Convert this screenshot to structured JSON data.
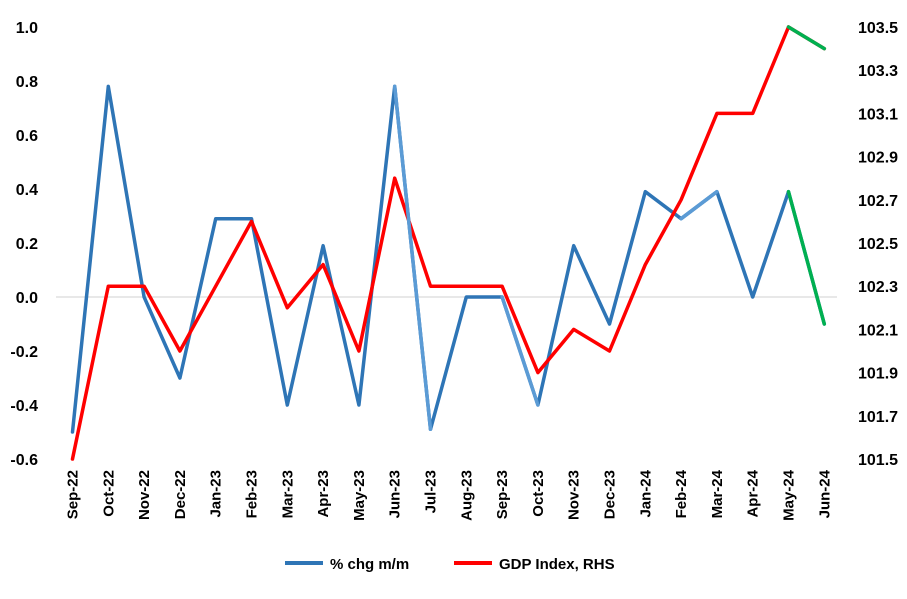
{
  "chart_data": {
    "type": "line",
    "categories": [
      "Sep-22",
      "Oct-22",
      "Nov-22",
      "Dec-22",
      "Jan-23",
      "Feb-23",
      "Mar-23",
      "Apr-23",
      "May-23",
      "Jun-23",
      "Jul-23",
      "Aug-23",
      "Sep-23",
      "Oct-23",
      "Nov-23",
      "Dec-23",
      "Jan-24",
      "Feb-24",
      "Mar-24",
      "Apr-24",
      "May-24",
      "Jun-24"
    ],
    "series": [
      {
        "name": "% chg m/m",
        "axis": "left",
        "color": "#2e75b6",
        "values": [
          -0.5,
          0.78,
          0.0,
          -0.3,
          0.29,
          0.29,
          -0.4,
          0.19,
          -0.4,
          0.78,
          -0.49,
          0.0,
          0.0,
          -0.4,
          0.19,
          -0.1,
          0.39,
          0.29,
          0.39,
          0.0,
          0.39,
          -0.1
        ]
      },
      {
        "name": "GDP Index, RHS",
        "axis": "right",
        "color": "#ff0000",
        "values": [
          101.5,
          102.3,
          102.3,
          102.0,
          102.3,
          102.6,
          102.2,
          102.4,
          102.0,
          102.8,
          102.3,
          102.3,
          102.3,
          101.9,
          102.1,
          102.0,
          102.4,
          102.7,
          103.1,
          103.1,
          103.5,
          103.4
        ]
      }
    ],
    "highlight_segments": [
      {
        "series": 0,
        "from": 9,
        "to": 10,
        "color": "#5b9bd5"
      },
      {
        "series": 0,
        "from": 12,
        "to": 13,
        "color": "#5b9bd5"
      },
      {
        "series": 0,
        "from": 17,
        "to": 18,
        "color": "#5b9bd5"
      },
      {
        "series": 0,
        "from": 20,
        "to": 21,
        "color": "#00b050"
      },
      {
        "series": 1,
        "from": 20,
        "to": 21,
        "color": "#00b050"
      }
    ],
    "y_left": {
      "min": -0.6,
      "max": 1.0,
      "step": 0.2,
      "labels": [
        "-0.6",
        "-0.4",
        "-0.2",
        "0.0",
        "0.2",
        "0.4",
        "0.6",
        "0.8",
        "1.0"
      ]
    },
    "y_right": {
      "min": 101.5,
      "max": 103.5,
      "step": 0.2,
      "labels": [
        "101.5",
        "101.7",
        "101.9",
        "102.1",
        "102.3",
        "102.5",
        "102.7",
        "102.9",
        "103.1",
        "103.3",
        "103.5"
      ]
    },
    "grid": false,
    "legend_position": "bottom",
    "title": "",
    "xlabel": "",
    "ylabel": ""
  }
}
